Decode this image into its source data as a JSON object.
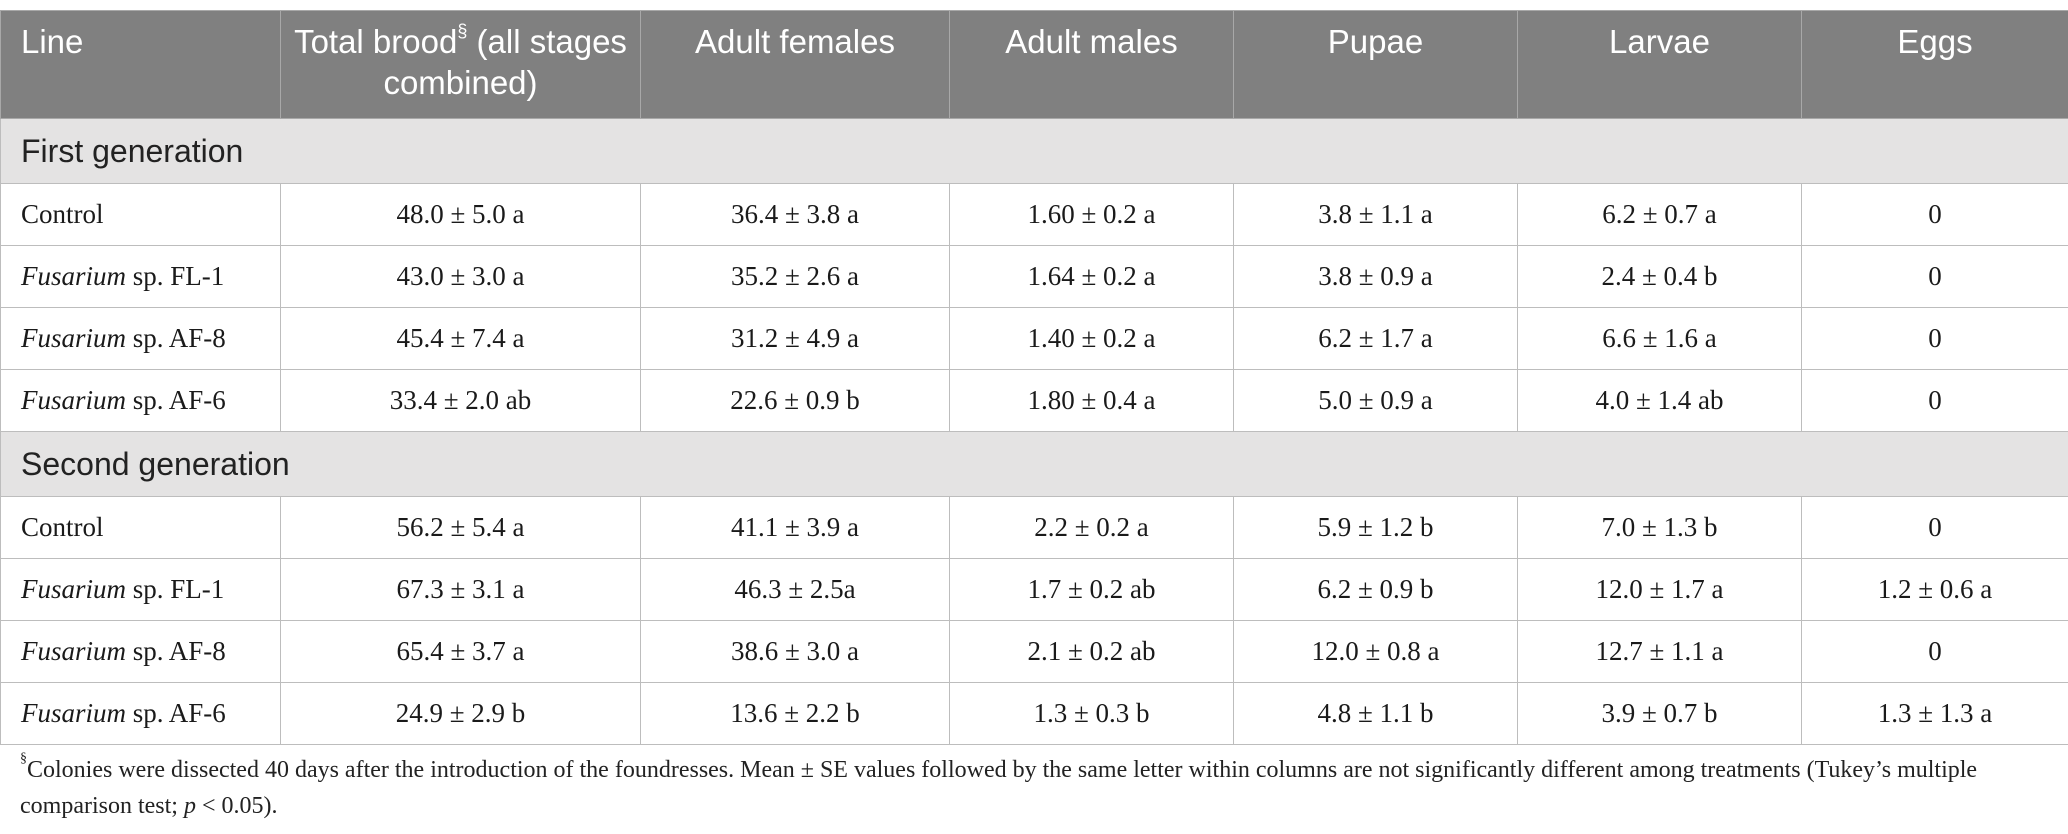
{
  "header": {
    "line": "Line",
    "total_brood": "Total brood",
    "total_brood_mark": "§",
    "total_brood_rest": " (all stages combined)",
    "adult_females": "Adult females",
    "adult_males": "Adult males",
    "pupae": "Pupae",
    "larvae": "Larvae",
    "eggs": "Eggs"
  },
  "groups": [
    {
      "title": "First generation",
      "rows": [
        {
          "genus": "",
          "line": "Control",
          "total": "48.0 ± 5.0 a",
          "females": "36.4 ± 3.8 a",
          "males": "1.60 ± 0.2 a",
          "pupae": "3.8 ± 1.1 a",
          "larvae": "6.2 ± 0.7 a",
          "eggs": "0"
        },
        {
          "genus": "Fusarium",
          "line": " sp. FL-1",
          "total": "43.0 ± 3.0 a",
          "females": "35.2 ± 2.6 a",
          "males": "1.64 ± 0.2 a",
          "pupae": "3.8 ± 0.9 a",
          "larvae": "2.4 ± 0.4 b",
          "eggs": "0"
        },
        {
          "genus": "Fusarium",
          "line": " sp. AF-8",
          "total": "45.4 ± 7.4 a",
          "females": "31.2 ± 4.9 a",
          "males": "1.40 ± 0.2 a",
          "pupae": "6.2 ± 1.7 a",
          "larvae": "6.6 ± 1.6 a",
          "eggs": "0"
        },
        {
          "genus": "Fusarium",
          "line": " sp. AF-6",
          "total": "33.4 ± 2.0 ab",
          "females": "22.6 ± 0.9 b",
          "males": "1.80 ± 0.4 a",
          "pupae": "5.0 ± 0.9 a",
          "larvae": "4.0 ± 1.4 ab",
          "eggs": "0"
        }
      ]
    },
    {
      "title": "Second generation",
      "rows": [
        {
          "genus": "",
          "line": "Control",
          "total": "56.2 ± 5.4 a",
          "females": "41.1 ± 3.9 a",
          "males": "2.2 ± 0.2 a",
          "pupae": "5.9 ± 1.2 b",
          "larvae": "7.0 ± 1.3 b",
          "eggs": "0"
        },
        {
          "genus": "Fusarium",
          "line": " sp. FL-1",
          "total": "67.3 ± 3.1 a",
          "females": "46.3 ± 2.5a",
          "males": "1.7 ± 0.2 ab",
          "pupae": "6.2 ± 0.9 b",
          "larvae": "12.0 ± 1.7 a",
          "eggs": "1.2 ± 0.6 a"
        },
        {
          "genus": "Fusarium",
          "line": " sp. AF-8",
          "total": "65.4 ± 3.7 a",
          "females": "38.6 ± 3.0 a",
          "males": "2.1 ± 0.2 ab",
          "pupae": "12.0 ± 0.8 a",
          "larvae": "12.7 ± 1.1 a",
          "eggs": "0"
        },
        {
          "genus": "Fusarium",
          "line": " sp. AF-6",
          "total": "24.9 ± 2.9 b",
          "females": "13.6 ± 2.2 b",
          "males": "1.3 ± 0.3 b",
          "pupae": "4.8 ± 1.1 b",
          "larvae": "3.9 ± 0.7 b",
          "eggs": "1.3 ± 1.3 a"
        }
      ]
    }
  ],
  "footnote": {
    "mark": "§",
    "text_before": "Colonies were dissected 40 days after the introduction of the foundresses. Mean ± SE values followed by the same letter within columns are not significantly different among treatments (Tukey’s multiple comparison test; ",
    "p": "p",
    "text_after": " < 0.05)."
  },
  "colors": {
    "header_bg": "#808080",
    "group_bg": "#e4e3e3",
    "border": "#bdbdbd"
  }
}
